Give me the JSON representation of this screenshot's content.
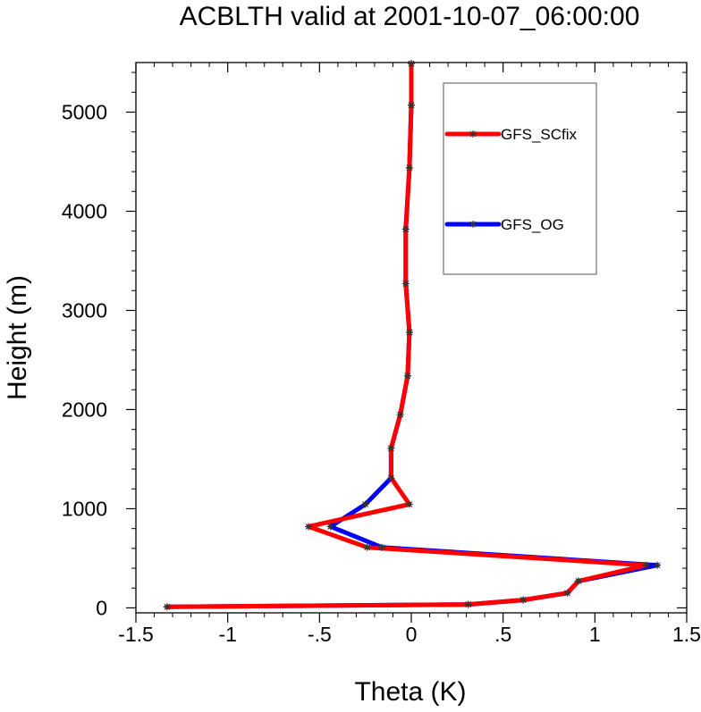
{
  "chart_data": {
    "type": "line",
    "title": "ACBLTH valid at 2001-10-07_06:00:00",
    "xlabel": "Theta (K)",
    "ylabel": "Height (m)",
    "xlim": [
      -1.5,
      1.5
    ],
    "ylim": [
      -50,
      5500
    ],
    "xticks": [
      -1.5,
      -1,
      -0.5,
      0,
      0.5,
      1,
      1.5
    ],
    "xtick_labels": [
      "-1.5",
      "-1",
      "-.5",
      "0",
      ".5",
      "1",
      "1.5"
    ],
    "yticks": [
      0,
      1000,
      2000,
      3000,
      4000,
      5000
    ],
    "ytick_labels": [
      "0",
      "1000",
      "2000",
      "3000",
      "4000",
      "5000"
    ],
    "grid": false,
    "legend_position": "top-right",
    "series": [
      {
        "name": "GFS_SCfix",
        "color": "#ff0000",
        "points": [
          [
            -1.33,
            10
          ],
          [
            0.31,
            35
          ],
          [
            0.61,
            80
          ],
          [
            0.85,
            150
          ],
          [
            0.91,
            270
          ],
          [
            1.28,
            430
          ],
          [
            -0.24,
            610
          ],
          [
            -0.56,
            820
          ],
          [
            -0.01,
            1045
          ],
          [
            -0.11,
            1310
          ],
          [
            -0.11,
            1610
          ],
          [
            -0.06,
            1950
          ],
          [
            -0.02,
            2340
          ],
          [
            -0.01,
            2780
          ],
          [
            -0.03,
            3270
          ],
          [
            -0.03,
            3820
          ],
          [
            -0.01,
            4440
          ],
          [
            0.0,
            5070
          ],
          [
            0.0,
            5490
          ]
        ]
      },
      {
        "name": "GFS_OG",
        "color": "#0000ff",
        "points": [
          [
            -1.33,
            10
          ],
          [
            0.31,
            35
          ],
          [
            0.61,
            80
          ],
          [
            0.85,
            150
          ],
          [
            0.91,
            270
          ],
          [
            1.34,
            430
          ],
          [
            -0.16,
            610
          ],
          [
            -0.44,
            820
          ],
          [
            -0.25,
            1045
          ],
          [
            -0.11,
            1310
          ],
          [
            -0.11,
            1610
          ],
          [
            -0.06,
            1950
          ],
          [
            -0.02,
            2340
          ],
          [
            -0.01,
            2780
          ],
          [
            -0.03,
            3270
          ],
          [
            -0.03,
            3820
          ],
          [
            -0.01,
            4440
          ],
          [
            0.0,
            5070
          ],
          [
            0.0,
            5490
          ]
        ]
      }
    ],
    "marker_color": "#333333"
  }
}
